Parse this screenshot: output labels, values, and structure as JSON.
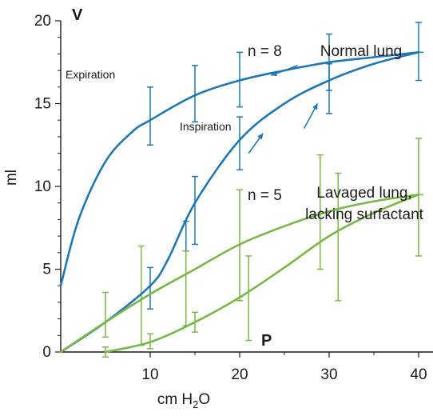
{
  "colors": {
    "normal": "#1f77b4",
    "lavaged": "#7ab648",
    "axis": "#1a1a1a"
  },
  "chart_data": {
    "type": "line",
    "xlabel_prefix": "cm H",
    "xlabel_sub": "2",
    "xlabel_suffix": "O",
    "ylabel": "ml",
    "x_axis_letter": "P",
    "y_axis_letter": "V",
    "xlim": [
      0,
      45
    ],
    "ylim": [
      0,
      20
    ],
    "x_ticks": [
      10,
      20,
      30,
      40
    ],
    "y_ticks": [
      0,
      5,
      10,
      15,
      20
    ],
    "grid": false,
    "annotations": {
      "expiration": "Expiration",
      "inspiration": "Inspiration"
    },
    "groups": [
      {
        "key": "normal",
        "label": "Normal lung",
        "label_lines": [
          "Normal lung"
        ],
        "n_label": "n = 8",
        "end_point": [
          40,
          18.1
        ],
        "curves": [
          {
            "role": "expiration",
            "x": [
              0,
              2,
              5,
              8,
              10,
              15,
              20,
              25,
              30,
              35,
              40
            ],
            "y": [
              4.0,
              8.0,
              11.5,
              13.3,
              14.0,
              15.5,
              16.4,
              17.0,
              17.5,
              17.8,
              18.1
            ]
          },
          {
            "role": "inspiration",
            "x": [
              0,
              5,
              10,
              12,
              15,
              20,
              25,
              30,
              35,
              40
            ],
            "y": [
              0,
              1.8,
              4.0,
              5.6,
              9.0,
              12.8,
              15.0,
              16.4,
              17.4,
              18.1
            ]
          }
        ],
        "error_bars": [
          {
            "x": 10,
            "low": 12.5,
            "high": 16.0
          },
          {
            "x": 15,
            "low": 13.9,
            "high": 17.3
          },
          {
            "x": 20,
            "low": 14.8,
            "high": 18.1
          },
          {
            "x": 30,
            "low": 15.8,
            "high": 19.2
          },
          {
            "x": 40,
            "low": 16.4,
            "high": 19.9
          },
          {
            "x": 10,
            "low": 2.6,
            "high": 5.1
          },
          {
            "x": 14,
            "low": 6.1,
            "high": 7.9
          },
          {
            "x": 15,
            "low": 6.5,
            "high": 10.6
          },
          {
            "x": 20,
            "low": 11.0,
            "high": 14.2
          },
          {
            "x": 30,
            "low": 14.4,
            "high": 17.4
          }
        ]
      },
      {
        "key": "lavaged",
        "label": "Lavaged lung, lacking surfactant",
        "label_lines": [
          "Lavaged lung,",
          "lacking surfactant"
        ],
        "n_label": "n = 5",
        "end_point": [
          40,
          9.5
        ],
        "curves": [
          {
            "role": "expiration",
            "x": [
              0,
              5,
              10,
              15,
              20,
              25,
              30,
              35,
              40
            ],
            "y": [
              0,
              1.8,
              3.5,
              5.0,
              6.5,
              7.6,
              8.5,
              9.1,
              9.5
            ]
          },
          {
            "role": "inspiration",
            "x": [
              5,
              10,
              15,
              20,
              25,
              30,
              35,
              40
            ],
            "y": [
              0,
              0.6,
              1.8,
              3.3,
              5.1,
              7.0,
              8.4,
              9.5
            ]
          }
        ],
        "error_bars": [
          {
            "x": 5,
            "low": 0.9,
            "high": 3.6
          },
          {
            "x": 9,
            "low": 0.4,
            "high": 6.4
          },
          {
            "x": 14,
            "low": 1.6,
            "high": 6.1
          },
          {
            "x": 20,
            "low": 3.1,
            "high": 9.8
          },
          {
            "x": 29,
            "low": 5.0,
            "high": 11.9
          },
          {
            "x": 40,
            "low": 5.8,
            "high": 12.9
          },
          {
            "x": 5,
            "low": -0.3,
            "high": 0.3
          },
          {
            "x": 10,
            "low": 0.2,
            "high": 1.1
          },
          {
            "x": 15,
            "low": 1.2,
            "high": 2.4
          },
          {
            "x": 21,
            "low": 0.7,
            "high": 5.8
          },
          {
            "x": 31,
            "low": 3.1,
            "high": 10.8
          }
        ]
      }
    ]
  }
}
